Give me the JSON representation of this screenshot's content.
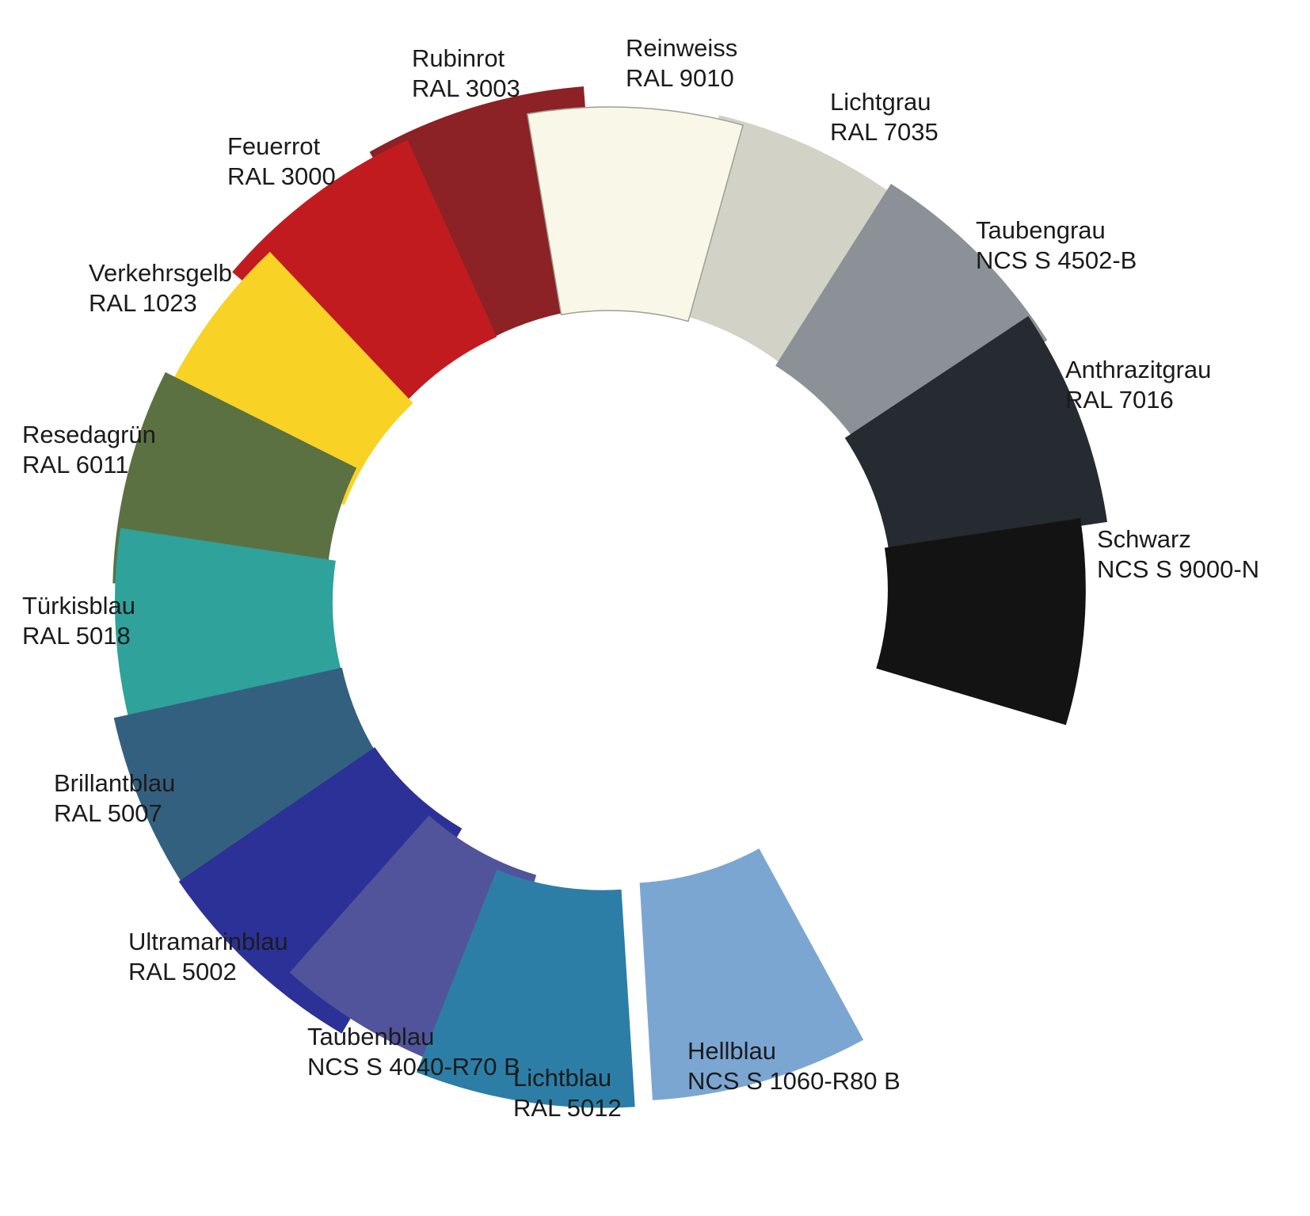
{
  "figure": {
    "background": "#ffffff",
    "card_outline_color": "#9f9f96"
  },
  "wheel": {
    "swatches": [
      {
        "id": "reinweiss",
        "name": "Reinweiss",
        "code": "RAL 9010",
        "hex": "#f9f7e8",
        "angle_deg": 3
      },
      {
        "id": "lichtgrau",
        "name": "Lichtgrau",
        "code": "RAL 7035",
        "hex": "#d2d3c6",
        "angle_deg": 25
      },
      {
        "id": "taubengrau",
        "name": "Taubengrau",
        "code": "NCS S 4502-B",
        "hex": "#8b9196",
        "angle_deg": 47
      },
      {
        "id": "anthrazitgrau",
        "name": "Anthrazitgrau",
        "code": "RAL 7016",
        "hex": "#252b31",
        "angle_deg": 68
      },
      {
        "id": "schwarz",
        "name": "Schwarz",
        "code": "NCS S 9000-N",
        "hex": "#131313",
        "angle_deg": 92
      },
      {
        "id": "hellblau",
        "name": "Hellblau",
        "code": "NCS S 1060-R80 B",
        "hex": "#7ba6d2",
        "angle_deg": 162
      },
      {
        "id": "lichtblau",
        "name": "Lichtblau",
        "code": "RAL 5012",
        "hex": "#2c7ea6",
        "angle_deg": 190
      },
      {
        "id": "taubenblau",
        "name": "Taubenblau",
        "code": "NCS S 4040-R70 B",
        "hex": "#51549a",
        "angle_deg": 208
      },
      {
        "id": "ultramarinblau",
        "name": "Ultramarinblau",
        "code": "RAL 5002",
        "hex": "#2b3197",
        "angle_deg": 225
      },
      {
        "id": "brillantblau",
        "name": "Brillantblau",
        "code": "RAL 5007",
        "hex": "#34607f",
        "angle_deg": 244
      },
      {
        "id": "tuerkisblau",
        "name": "Türkisblau",
        "code": "RAL 5018",
        "hex": "#2fa29b",
        "angle_deg": 266
      },
      {
        "id": "resedagruen",
        "name": "Resedagrün",
        "code": "RAL 6011",
        "hex": "#5b7142",
        "angle_deg": 285
      },
      {
        "id": "verkehrsgelb",
        "name": "Verkehrsgelb",
        "code": "RAL 1023",
        "hex": "#f9d226",
        "angle_deg": 303
      },
      {
        "id": "feuerrot",
        "name": "Feuerrot",
        "code": "RAL 3000",
        "hex": "#c11b20",
        "angle_deg": 324
      },
      {
        "id": "rubinrot",
        "name": "Rubinrot",
        "code": "RAL 3003",
        "hex": "#8c2126",
        "angle_deg": 345
      }
    ]
  }
}
